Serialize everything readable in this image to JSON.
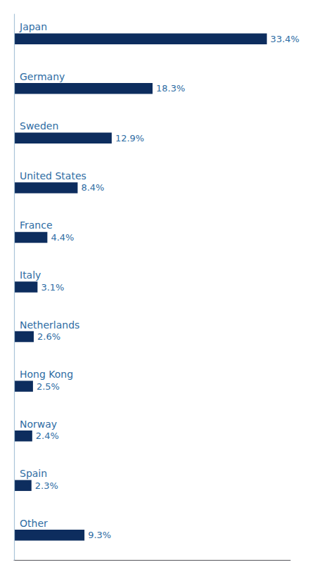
{
  "chart_data": {
    "type": "bar",
    "orientation": "horizontal",
    "categories": [
      "Japan",
      "Germany",
      "Sweden",
      "United States",
      "France",
      "Italy",
      "Netherlands",
      "Hong Kong",
      "Norway",
      "Spain",
      "Other"
    ],
    "values": [
      33.4,
      18.3,
      12.9,
      8.4,
      4.4,
      3.1,
      2.6,
      2.5,
      2.4,
      2.3,
      9.3
    ],
    "value_labels": [
      "33.4%",
      "18.3%",
      "12.9%",
      "8.4%",
      "4.4%",
      "3.1%",
      "2.6%",
      "2.5%",
      "2.4%",
      "2.3%",
      "9.3%"
    ],
    "data_labels": true,
    "color": "#0d2d5e",
    "xlim": [
      0,
      36.5
    ],
    "xticks": [],
    "tick_labels": "y",
    "grid": false
  }
}
